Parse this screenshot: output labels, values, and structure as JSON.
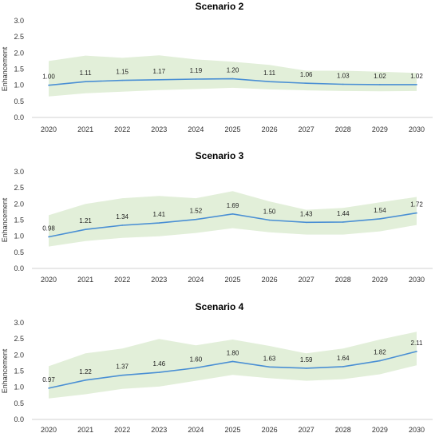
{
  "chart_data": [
    {
      "type": "line",
      "title": "Scenario 2",
      "ylabel": "Enhancement",
      "xlabel": "",
      "categories": [
        "2020",
        "2021",
        "2022",
        "2023",
        "2024",
        "2025",
        "2026",
        "2027",
        "2028",
        "2029",
        "2030"
      ],
      "series": [
        {
          "values": [
            1.0,
            1.11,
            1.15,
            1.17,
            1.19,
            1.2,
            1.11,
            1.06,
            1.03,
            1.02,
            1.02
          ],
          "labels": [
            "1.00",
            "1.11",
            "1.15",
            "1.17",
            "1.19",
            "1.20",
            "1.11",
            "1.06",
            "1.03",
            "1.02",
            "1.02"
          ]
        }
      ],
      "band": {
        "upper": [
          1.75,
          1.92,
          1.85,
          1.93,
          1.8,
          1.73,
          1.63,
          1.45,
          1.45,
          1.42,
          1.38
        ],
        "lower": [
          0.65,
          0.75,
          0.8,
          0.85,
          0.88,
          0.92,
          0.87,
          0.84,
          0.82,
          0.81,
          0.82
        ]
      },
      "yticks": [
        "0.0",
        "0.5",
        "1.0",
        "1.5",
        "2.0",
        "2.5",
        "3.0"
      ],
      "ylim": [
        0,
        3
      ],
      "grid": false,
      "colors": {
        "line": "#4a8fd4",
        "band": "#e2efd9"
      }
    },
    {
      "type": "line",
      "title": "Scenario 3",
      "ylabel": "Enhancement",
      "xlabel": "",
      "categories": [
        "2020",
        "2021",
        "2022",
        "2023",
        "2024",
        "2025",
        "2026",
        "2027",
        "2028",
        "2029",
        "2030"
      ],
      "series": [
        {
          "values": [
            0.98,
            1.21,
            1.34,
            1.41,
            1.52,
            1.69,
            1.5,
            1.43,
            1.44,
            1.54,
            1.72
          ],
          "labels": [
            "0.98",
            "1.21",
            "1.34",
            "1.41",
            "1.52",
            "1.69",
            "1.50",
            "1.43",
            "1.44",
            "1.54",
            "1.72"
          ]
        }
      ],
      "band": {
        "upper": [
          1.65,
          2.0,
          2.18,
          2.25,
          2.18,
          2.4,
          2.08,
          1.82,
          1.88,
          2.05,
          2.22
        ],
        "lower": [
          0.68,
          0.85,
          0.95,
          1.0,
          1.1,
          1.25,
          1.12,
          1.05,
          1.05,
          1.15,
          1.35
        ]
      },
      "yticks": [
        "0.0",
        "0.5",
        "1.0",
        "1.5",
        "2.0",
        "2.5",
        "3.0"
      ],
      "ylim": [
        0,
        3
      ],
      "grid": false,
      "colors": {
        "line": "#4a8fd4",
        "band": "#e2efd9"
      }
    },
    {
      "type": "line",
      "title": "Scenario 4",
      "ylabel": "Enhancement",
      "xlabel": "",
      "categories": [
        "2020",
        "2021",
        "2022",
        "2023",
        "2024",
        "2025",
        "2026",
        "2027",
        "2028",
        "2029",
        "2030"
      ],
      "series": [
        {
          "values": [
            0.97,
            1.22,
            1.37,
            1.46,
            1.6,
            1.8,
            1.63,
            1.59,
            1.64,
            1.82,
            2.11
          ],
          "labels": [
            "0.97",
            "1.22",
            "1.37",
            "1.46",
            "1.60",
            "1.80",
            "1.63",
            "1.59",
            "1.64",
            "1.82",
            "2.11"
          ]
        }
      ],
      "band": {
        "upper": [
          1.65,
          2.05,
          2.2,
          2.5,
          2.3,
          2.48,
          2.28,
          2.05,
          2.2,
          2.48,
          2.72
        ],
        "lower": [
          0.65,
          0.78,
          0.95,
          1.02,
          1.2,
          1.38,
          1.28,
          1.2,
          1.25,
          1.4,
          1.68
        ]
      },
      "yticks": [
        "0.0",
        "0.5",
        "1.0",
        "1.5",
        "2.0",
        "2.5",
        "3.0"
      ],
      "ylim": [
        0,
        3
      ],
      "grid": false,
      "colors": {
        "line": "#4a8fd4",
        "band": "#e2efd9"
      }
    }
  ]
}
